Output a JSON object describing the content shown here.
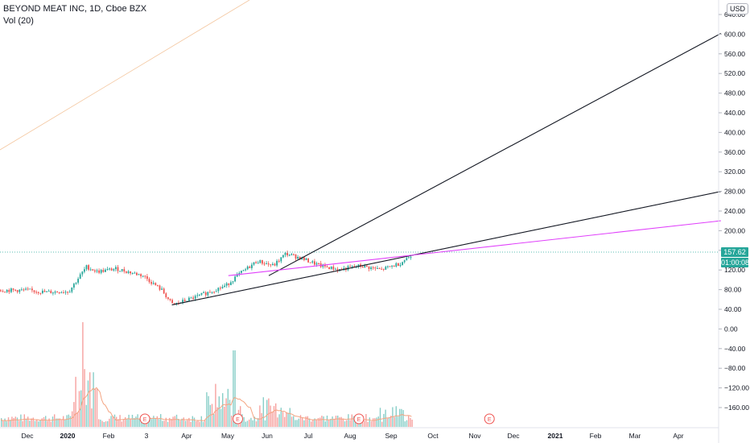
{
  "legend": {
    "symbol_line": "BEYOND MEAT INC, 1D, Cboe BZX",
    "volume_line": "Vol (20)"
  },
  "currency": "USD",
  "last_price": "157.62",
  "countdown": "01:00:08",
  "price_axis_ticks": [
    "640.00",
    "600.00",
    "560.00",
    "520.00",
    "480.00",
    "440.00",
    "400.00",
    "360.00",
    "320.00",
    "280.00",
    "240.00",
    "200.00",
    "160.00",
    "120.00",
    "80.00",
    "40.00",
    "0.00",
    "−40.00",
    "−80.00",
    "−120.00",
    "−160.00"
  ],
  "time_axis_ticks": [
    "Dec",
    "2020",
    "Feb",
    "3",
    "Apr",
    "May",
    "Jun",
    "Jul",
    "Aug",
    "Sep",
    "Oct",
    "Nov",
    "Dec",
    "2021",
    "Feb",
    "Mar",
    "Apr"
  ],
  "earnings_marker": "E",
  "colors": {
    "up": "#26a69a",
    "down": "#ef5350",
    "trend_line": "#131722",
    "magenta_line": "#e040fb",
    "volume_ma": "#f4a582",
    "last_price_line": "#26a69a"
  },
  "chart_data": {
    "type": "candlestick",
    "price_range": [
      -200,
      660
    ],
    "close_approx": [
      {
        "date": "2019-12-01",
        "close": 80
      },
      {
        "date": "2019-12-15",
        "close": 76
      },
      {
        "date": "2020-01-01",
        "close": 78
      },
      {
        "date": "2020-01-08",
        "close": 105
      },
      {
        "date": "2020-01-14",
        "close": 128
      },
      {
        "date": "2020-01-22",
        "close": 118
      },
      {
        "date": "2020-02-05",
        "close": 124
      },
      {
        "date": "2020-02-25",
        "close": 110
      },
      {
        "date": "2020-03-10",
        "close": 80
      },
      {
        "date": "2020-03-18",
        "close": 50
      },
      {
        "date": "2020-04-06",
        "close": 68
      },
      {
        "date": "2020-04-27",
        "close": 90
      },
      {
        "date": "2020-05-05",
        "close": 110
      },
      {
        "date": "2020-05-20",
        "close": 140
      },
      {
        "date": "2020-06-01",
        "close": 130
      },
      {
        "date": "2020-06-10",
        "close": 155
      },
      {
        "date": "2020-06-22",
        "close": 145
      },
      {
        "date": "2020-07-06",
        "close": 130
      },
      {
        "date": "2020-07-20",
        "close": 122
      },
      {
        "date": "2020-08-04",
        "close": 130
      },
      {
        "date": "2020-08-20",
        "close": 122
      },
      {
        "date": "2020-09-03",
        "close": 135
      },
      {
        "date": "2020-09-14",
        "close": 157.62
      }
    ],
    "trend_lines": [
      {
        "from": {
          "date": "2020-03-18",
          "price": 50
        },
        "to": {
          "date": "2021-04-30",
          "price": 282
        }
      },
      {
        "from": {
          "date": "2020-05-29",
          "price": 110
        },
        "to": {
          "date": "2021-04-30",
          "price": 605
        }
      },
      {
        "from": {
          "date": "2020-04-29",
          "price": 110
        },
        "to": {
          "date": "2021-04-30",
          "price": 222
        }
      }
    ],
    "earnings_dates": [
      "2020-02-27",
      "2020-05-06",
      "2020-08-04",
      "2020-11-09"
    ]
  }
}
